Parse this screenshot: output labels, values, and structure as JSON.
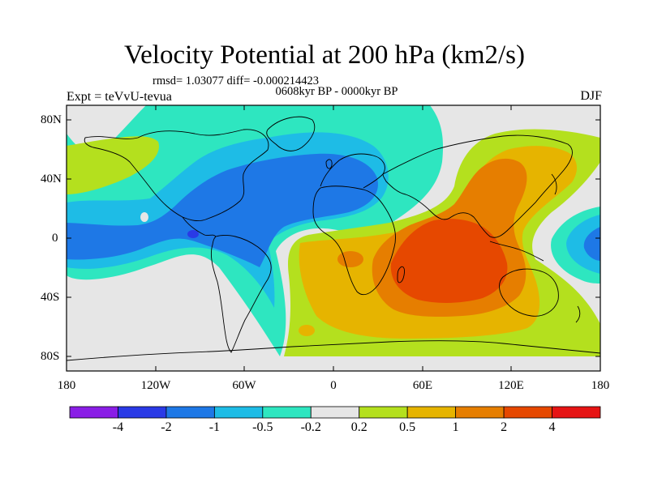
{
  "title": "Velocity Potential at 200 hPa (km2/s)",
  "stats_line": "rmsd= 1.03077 diff= -0.000214423",
  "period_line": "0608kyr BP - 0000kyr BP",
  "experiment": "Expt = teVvU-tevua",
  "season": "DJF",
  "lat_ticks": [
    "80N",
    "40N",
    "0",
    "40S",
    "80S"
  ],
  "lon_ticks": [
    "180",
    "120W",
    "60W",
    "0",
    "60E",
    "120E",
    "180"
  ],
  "colorbar": {
    "colors": [
      "#8a1ee6",
      "#2a3ae6",
      "#1e78e6",
      "#1ebce6",
      "#2ee6c0",
      "#e6e6e6",
      "#b4e01e",
      "#e6b400",
      "#e67e00",
      "#e64800",
      "#e61414"
    ],
    "labels": [
      "-4",
      "-2",
      "-1",
      "-0.5",
      "-0.2",
      "0.2",
      "0.5",
      "1",
      "2",
      "4"
    ]
  },
  "colors": {
    "bg": "#e6e6e6",
    "neg_weak": "#2ee6c0",
    "neg_mid": "#1ebce6",
    "neg_strong": "#1e78e6",
    "neg_xstrong": "#2a3ae6",
    "pos_weak": "#b4e01e",
    "pos_mid": "#e6b400",
    "pos_strong": "#e67e00",
    "pos_xstrong": "#e64800"
  }
}
